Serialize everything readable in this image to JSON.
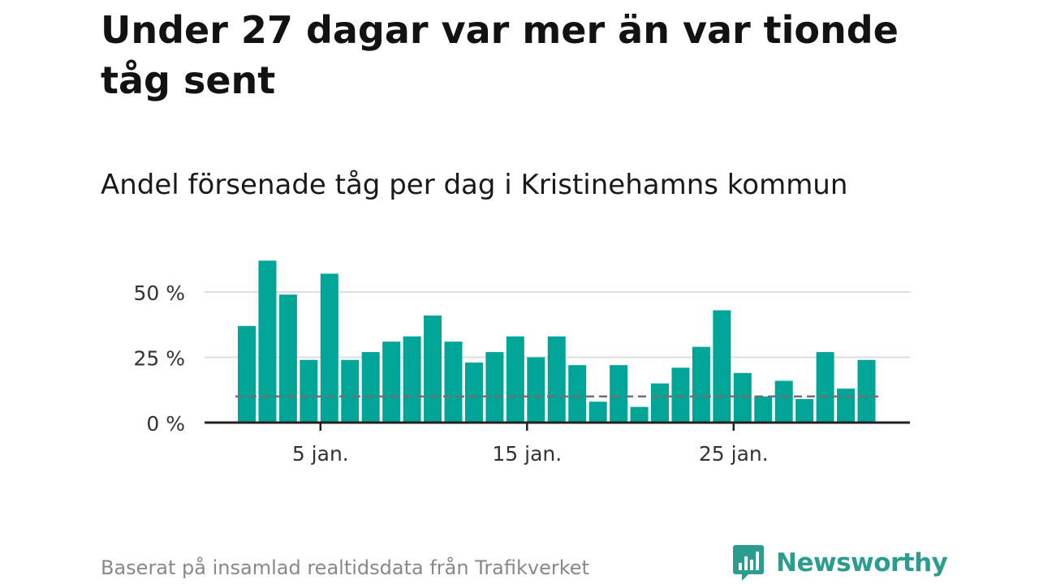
{
  "title": "Under 27 dagar var mer än var tionde tåg sent",
  "subtitle": "Andel försenade tåg per dag i Kristinehamns kommun",
  "chart_data": {
    "type": "bar",
    "title": "Under 27 dagar var mer än var tionde tåg sent",
    "subtitle": "Andel försenade tåg per dag i Kristinehamns kommun",
    "x": [
      1,
      2,
      3,
      4,
      5,
      6,
      7,
      8,
      9,
      10,
      11,
      12,
      13,
      14,
      15,
      16,
      17,
      18,
      19,
      20,
      21,
      22,
      23,
      24,
      25,
      26,
      27,
      28,
      29,
      30,
      31
    ],
    "values": [
      37,
      62,
      49,
      24,
      57,
      24,
      27,
      31,
      33,
      41,
      31,
      23,
      27,
      33,
      25,
      33,
      22,
      8,
      22,
      6,
      15,
      21,
      29,
      43,
      19,
      10,
      16,
      9,
      27,
      13,
      24
    ],
    "unit": "%",
    "ylim": [
      0,
      62
    ],
    "yticks": [
      0,
      25,
      50
    ],
    "ytick_labels": [
      "0 %",
      "25 %",
      "50 %"
    ],
    "xticks": [
      5,
      15,
      25
    ],
    "xtick_labels": [
      "5 jan.",
      "15 jan.",
      "25 jan."
    ],
    "reference_line": {
      "value": 10,
      "style": "dashed"
    },
    "grid": true,
    "bar_color": "#00a597"
  },
  "footer": {
    "source": "Baserat på insamlad realtidsdata från Trafikverket",
    "brand": "Newsworthy"
  },
  "colors": {
    "bar": "#00a597",
    "brand": "#2a9d8f",
    "grid": "#dddddd",
    "axis": "#222222",
    "reference": "#707070"
  },
  "icons": {
    "brand_logo": "bar-chart-speech-bubble-icon"
  }
}
